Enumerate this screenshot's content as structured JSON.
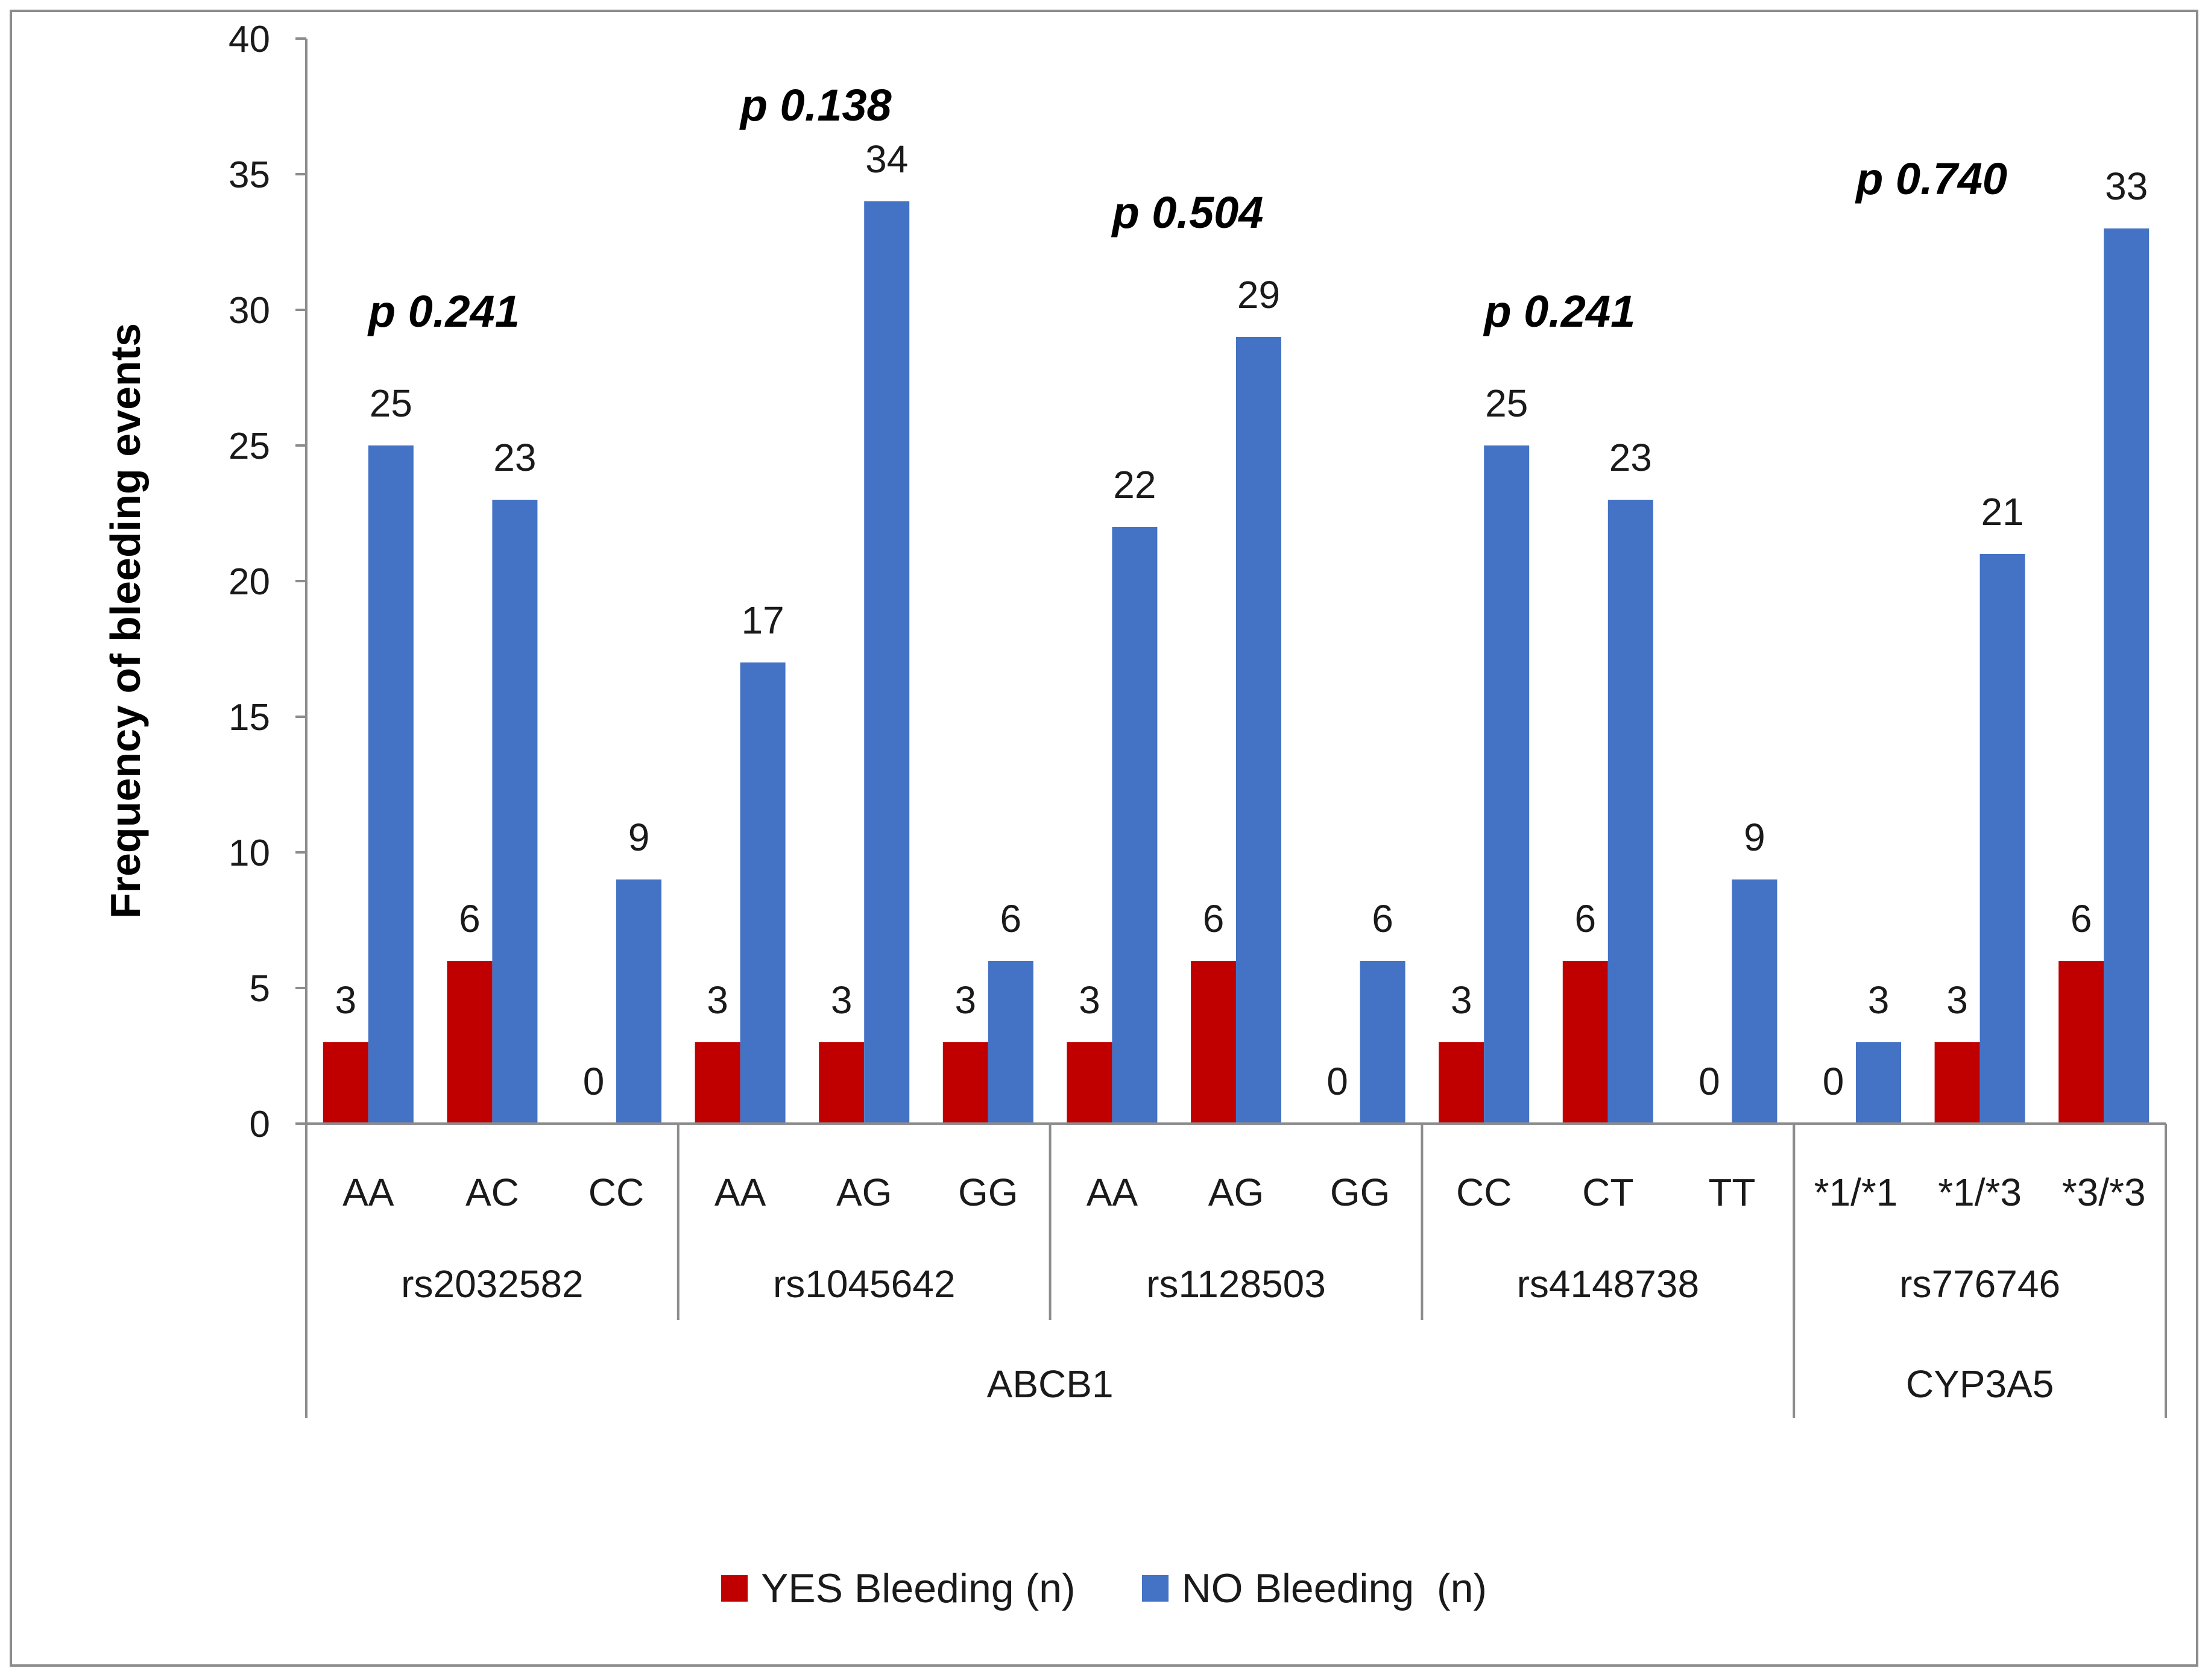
{
  "chart_data": {
    "type": "bar",
    "title": "",
    "xlabel": "",
    "ylabel": "Frequency of bleeding events",
    "ylim": [
      0,
      40
    ],
    "yticks": [
      0,
      5,
      10,
      15,
      20,
      25,
      30,
      35,
      40
    ],
    "grid": false,
    "legend_position": "bottom",
    "categories": [
      "AA",
      "AC",
      "CC",
      "AA",
      "AG",
      "GG",
      "AA",
      "AG",
      "GG",
      "CC",
      "CT",
      "TT",
      "*1/*1",
      "*1/*3",
      "*3/*3"
    ],
    "series": [
      {
        "name": "YES Bleeding (n)",
        "color": "#c00000",
        "values": [
          3,
          6,
          0,
          3,
          3,
          3,
          3,
          6,
          0,
          3,
          6,
          0,
          0,
          3,
          6
        ]
      },
      {
        "name": "NO Bleeding  (n)",
        "color": "#4472c4",
        "values": [
          25,
          23,
          9,
          17,
          34,
          6,
          22,
          29,
          6,
          25,
          23,
          9,
          3,
          21,
          33
        ]
      }
    ],
    "snp_groups": [
      {
        "label": "rs2032582",
        "count": 3,
        "p_value": "p 0.241"
      },
      {
        "label": "rs1045642",
        "count": 3,
        "p_value": "p 0.138"
      },
      {
        "label": "rs1128503",
        "count": 3,
        "p_value": "p 0.504"
      },
      {
        "label": "rs4148738",
        "count": 3,
        "p_value": "p 0.241"
      },
      {
        "label": "rs776746",
        "count": 3,
        "p_value": "p 0.740"
      }
    ],
    "gene_groups": [
      {
        "label": "ABCB1",
        "count": 12
      },
      {
        "label": "CYP3A5",
        "count": 3
      }
    ]
  }
}
